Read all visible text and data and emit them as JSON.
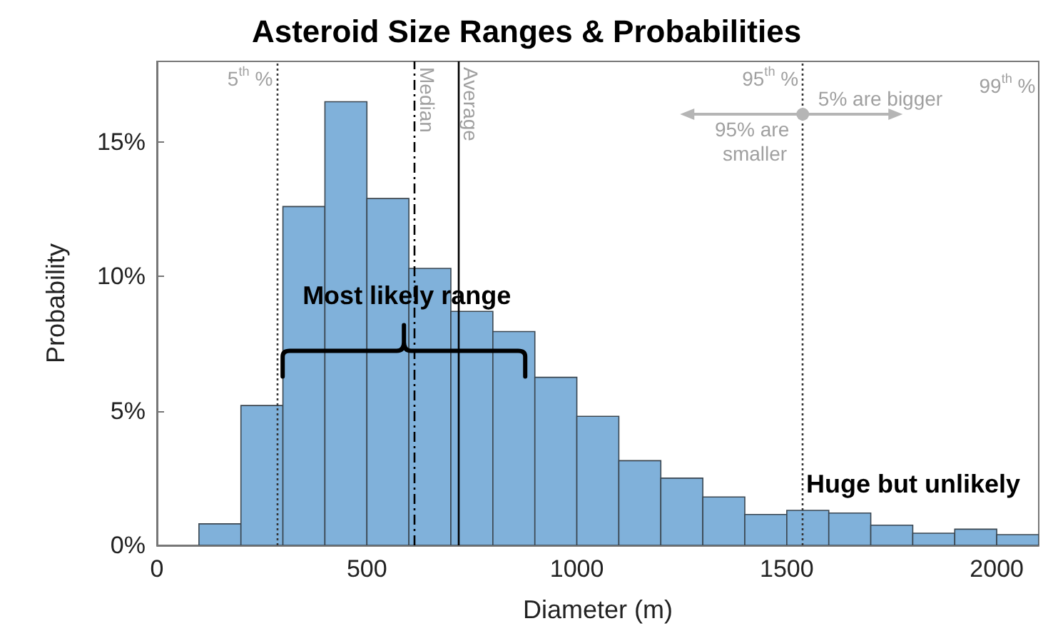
{
  "chart_data": {
    "type": "histogram",
    "title": "Asteroid Size Ranges & Probabilities",
    "xlabel": "Diameter (m)",
    "ylabel": "Probability",
    "color": "#80b1da",
    "bins": [
      100,
      200,
      300,
      400,
      500,
      600,
      700,
      800,
      900,
      1000,
      1100,
      1200,
      1300,
      1400,
      1500,
      1600,
      1700,
      1800,
      1900,
      2000,
      2100
    ],
    "values": [
      0.8,
      5.2,
      12.6,
      16.5,
      12.9,
      10.3,
      8.7,
      7.95,
      6.25,
      4.8,
      3.15,
      2.5,
      1.8,
      1.15,
      1.3,
      1.2,
      0.75,
      0.45,
      0.6,
      0.4
    ],
    "xlim": [
      0,
      2100
    ],
    "xticks": [
      0,
      500,
      1000,
      1500,
      2000
    ],
    "ylim": [
      0,
      18
    ],
    "yticks": [
      {
        "value": 0,
        "label": "0%"
      },
      {
        "value": 5,
        "label": "5%"
      },
      {
        "value": 10,
        "label": "10%"
      },
      {
        "value": 15,
        "label": "15%"
      }
    ],
    "grid": false,
    "ref_lines": [
      {
        "axis": "x",
        "value": 286,
        "label": "5$^{th}$ %",
        "color": "#333333",
        "line_style": "dotted"
      },
      {
        "axis": "x",
        "value": 614,
        "label": "Median",
        "color": "#000000",
        "line_style": "dashdot"
      },
      {
        "axis": "x",
        "value": 717,
        "label": "Average",
        "color": "#000000",
        "line_style": "solid"
      },
      {
        "axis": "x",
        "value": 1538,
        "label": "95$^{th}$ %",
        "color": "#333333",
        "line_style": "dotted"
      }
    ],
    "annotations": [
      {
        "text": "Most likely range",
        "x": 595,
        "y": 9.25
      },
      "Huge but unlikely",
      "95% are smaller",
      "5% are bigger",
      "99$^{th}$ %"
    ]
  }
}
